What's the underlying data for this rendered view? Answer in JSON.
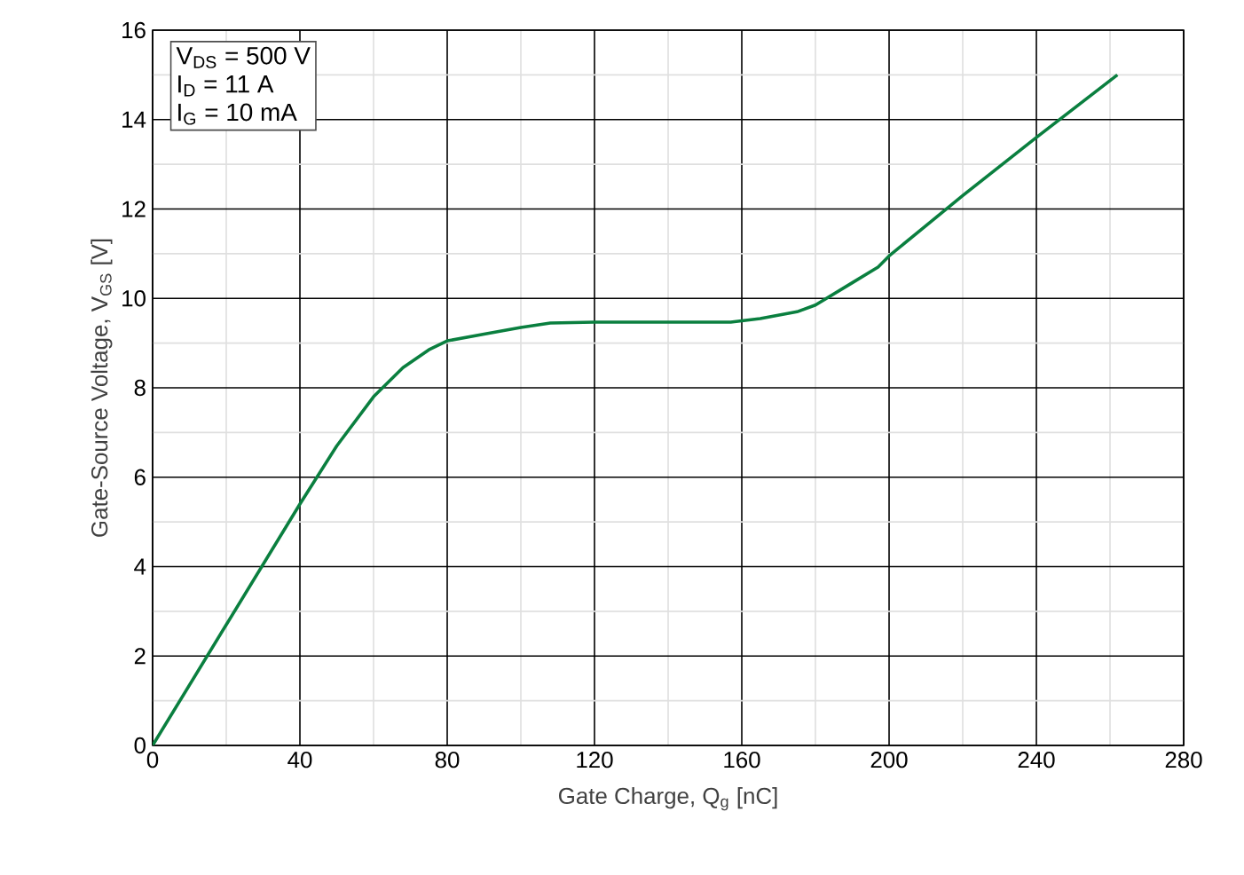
{
  "chart_data": {
    "type": "line",
    "xlabel": "Gate Charge, Q$_{g}$ [nC]",
    "ylabel": "Gate-Source Voltage, V$_{GS}$ [V]",
    "annotations": [
      "V$_{DS}$ = 500 V",
      "I$_{D}$ = 11 A",
      "I$_{G}$ = 10 mA"
    ],
    "x": [
      0,
      20,
      40,
      50,
      60,
      68,
      75,
      80,
      90,
      100,
      108,
      120,
      140,
      157,
      165,
      175,
      180,
      190,
      197,
      200,
      220,
      240,
      262
    ],
    "series": [
      {
        "color": "#0a7f3f",
        "values": [
          0,
          2.7,
          5.4,
          6.7,
          7.8,
          8.45,
          8.85,
          9.05,
          9.2,
          9.35,
          9.45,
          9.47,
          9.47,
          9.47,
          9.55,
          9.7,
          9.85,
          10.35,
          10.7,
          10.95,
          12.3,
          13.6,
          15.0
        ]
      }
    ],
    "xlim": [
      0,
      280
    ],
    "ylim": [
      0,
      16
    ],
    "xticks": [
      0,
      40,
      80,
      120,
      160,
      200,
      240,
      280
    ],
    "yticks": [
      0,
      2,
      4,
      6,
      8,
      10,
      12,
      14,
      16
    ],
    "grid": true,
    "marker": "none",
    "line_style": "solid"
  }
}
